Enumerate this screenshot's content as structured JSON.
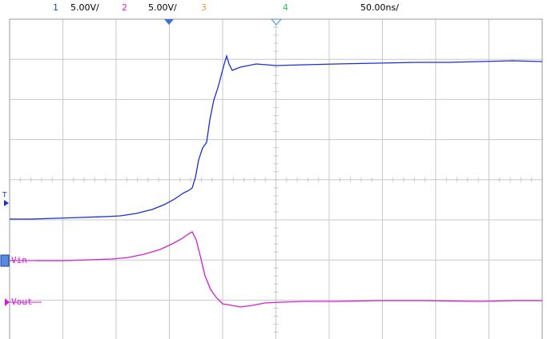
{
  "header": {
    "ch1": {
      "number": "1",
      "scale": "5.00V/"
    },
    "ch2": {
      "number": "2",
      "scale": "5.00V/"
    },
    "ch3": {
      "number": "3"
    },
    "ch4": {
      "number": "4"
    },
    "timebase": "50.00ns/"
  },
  "traces": {
    "vin": {
      "label": "Vin"
    },
    "vout": {
      "label": "Vout"
    }
  },
  "trigger": {
    "label": "T"
  }
}
